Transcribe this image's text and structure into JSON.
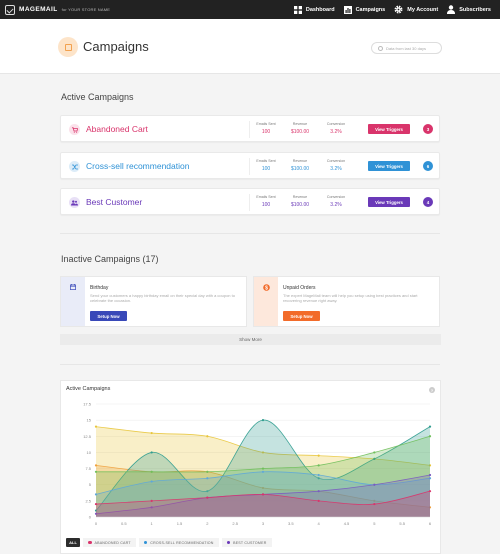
{
  "topbar": {
    "brand": "MAGEMAIL",
    "store": "for YOUR STORE NAME",
    "nav": [
      {
        "label": "Dashboard",
        "icon": "grid-icon"
      },
      {
        "label": "Campaigns",
        "icon": "bar-chart-icon"
      },
      {
        "label": "My Account",
        "icon": "gear-icon"
      },
      {
        "label": "Subscribers",
        "icon": "user-icon"
      }
    ]
  },
  "header": {
    "title": "Campaigns",
    "date_filter": "Data from last 30 days"
  },
  "active": {
    "title": "Active Campaigns",
    "stat_labels": {
      "emails": "Emails Sent",
      "revenue": "Revenue",
      "conversion": "Conversion"
    },
    "button_label": "View Triggers",
    "campaigns": [
      {
        "name": "Abandoned Cart",
        "emails": "100",
        "revenue": "$100.00",
        "conversion": "3.2%",
        "count": "3",
        "color": "#d9346b",
        "icon": "cart-icon"
      },
      {
        "name": "Cross-sell recommendation",
        "emails": "100",
        "revenue": "$100.00",
        "conversion": "3.2%",
        "count": "6",
        "color": "#2f92d6",
        "icon": "shuffle-icon"
      },
      {
        "name": "Best Customer",
        "emails": "100",
        "revenue": "$100.00",
        "conversion": "3.2%",
        "count": "4",
        "color": "#6a39b8",
        "icon": "users-icon"
      }
    ]
  },
  "inactive": {
    "title": "Inactive Campaigns (17)",
    "button_label": "Setup Now",
    "campaigns": [
      {
        "name": "Birthday",
        "desc": "Send your customers a happy birthday email on their special day with a coupon to celebrate the occasion.",
        "color": "#3848b8",
        "strip": "#e9ecf8",
        "icon": "calendar-icon"
      },
      {
        "name": "Unpaid Orders",
        "desc": "The expert MageMail team will help you setup using best practices and start recovering revenue right away.",
        "color": "#f26b2a",
        "strip": "#fde8dc",
        "icon": "dollar-icon"
      }
    ],
    "show_more": "Show More"
  },
  "chart_data": {
    "type": "area",
    "title": "Active Campaigns",
    "x": [
      0,
      0.5,
      1,
      1.5,
      2,
      2.5,
      3,
      3.5,
      4,
      4.5,
      5,
      5.5,
      6
    ],
    "x_ticks": [
      "0",
      "0.5",
      "1",
      "1.5",
      "2",
      "2.5",
      "3",
      "3.5",
      "4",
      "4.5",
      "5",
      "5.5",
      "6"
    ],
    "y_ticks": [
      "0",
      "2.5",
      "5",
      "7.5",
      "10",
      "12.5",
      "15",
      "17.5"
    ],
    "ylim": [
      0,
      17.5
    ],
    "xlim": [
      0,
      6
    ],
    "series": [
      {
        "x": [
          0,
          1,
          2,
          3,
          4,
          5,
          6
        ],
        "values": [
          14,
          13,
          12.5,
          10,
          9.5,
          9,
          8
        ],
        "color": "#e8c53a"
      },
      {
        "x": [
          0,
          1,
          2,
          3,
          4,
          5,
          6
        ],
        "values": [
          8,
          7,
          7,
          4.5,
          4,
          2.5,
          1.5
        ],
        "color": "#f0a03c"
      },
      {
        "x": [
          0,
          1,
          2,
          3,
          4,
          5,
          6
        ],
        "values": [
          1,
          10,
          4,
          15,
          6,
          9,
          14
        ],
        "color": "#2e9c8e"
      },
      {
        "x": [
          0,
          1,
          2,
          3,
          4,
          5,
          6
        ],
        "values": [
          7,
          7,
          7,
          7.5,
          8,
          10,
          12.5
        ],
        "color": "#6fbf5a"
      },
      {
        "x": [
          0,
          1,
          2,
          3,
          4,
          5,
          6
        ],
        "values": [
          3.5,
          5.5,
          6,
          7,
          6.5,
          5,
          6
        ],
        "color": "#5fa8d8"
      },
      {
        "x": [
          0,
          1,
          2,
          3,
          4,
          5,
          6
        ],
        "values": [
          0.5,
          1.5,
          3,
          3.5,
          4,
          5,
          6.5
        ],
        "color": "#7a5cc0"
      },
      {
        "x": [
          0,
          1,
          2,
          3,
          4,
          5,
          6
        ],
        "values": [
          2,
          2.5,
          3,
          3.5,
          2.5,
          2,
          4
        ],
        "color": "#d9346b"
      }
    ],
    "legend": {
      "all_label": "ALL",
      "items": [
        {
          "label": "ABANDONED CART",
          "color": "#d9346b"
        },
        {
          "label": "CROSS-SELL RECOMMENDATION",
          "color": "#2f92d6"
        },
        {
          "label": "BEST CUSTOMER",
          "color": "#6a39b8"
        }
      ]
    }
  }
}
